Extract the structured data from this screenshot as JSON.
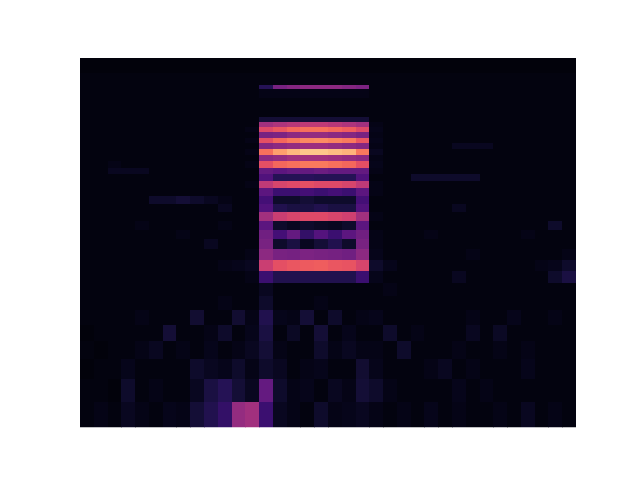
{
  "chart_data": {
    "type": "heatmap",
    "log": "y",
    "tick_labels": false,
    "color": "magma",
    "xlim": [
      0,
      36
    ],
    "ylim": [
      6.5,
      50.5
    ],
    "x_edges": [
      0,
      1,
      2,
      3,
      4,
      5,
      6,
      7,
      8,
      9,
      10,
      11,
      12,
      13,
      14,
      15,
      16,
      17,
      18,
      19,
      20,
      21,
      22,
      23,
      24,
      25,
      26,
      27,
      28,
      29,
      30,
      31,
      32,
      33,
      34,
      35,
      36
    ],
    "y_edges": [
      6.5,
      7.5,
      8.5,
      9.5,
      10.5,
      11.5,
      12.5,
      13.5,
      14.5,
      15.5,
      16.5,
      17.5,
      18.5,
      19.5,
      20.5,
      21.5,
      22.5,
      23.5,
      24.5,
      25.5,
      26.5,
      27.5,
      28.5,
      29.5,
      30.5,
      31.5,
      32.5,
      33.5,
      34.5,
      35.5,
      36.5,
      38.5,
      40.5,
      42.5,
      43.5,
      46.5,
      50.5
    ],
    "color_range": [
      0,
      100
    ],
    "cells": [
      [
        3,
        4,
        3,
        6,
        4,
        3,
        5,
        4,
        10,
        14,
        18,
        42,
        45,
        20,
        6,
        4,
        3,
        8,
        4,
        5,
        6,
        4,
        3,
        4,
        3,
        5,
        3,
        4,
        3,
        3,
        4,
        3,
        6,
        3,
        4,
        3
      ],
      [
        3,
        3,
        2,
        8,
        3,
        4,
        3,
        3,
        6,
        12,
        15,
        10,
        6,
        30,
        8,
        4,
        5,
        3,
        6,
        4,
        10,
        8,
        4,
        3,
        3,
        3,
        3,
        5,
        3,
        4,
        3,
        3,
        3,
        3,
        3,
        3
      ],
      [
        2,
        3,
        3,
        5,
        3,
        3,
        3,
        3,
        8,
        6,
        5,
        8,
        4,
        8,
        6,
        3,
        4,
        5,
        3,
        3,
        9,
        5,
        3,
        3,
        3,
        4,
        6,
        3,
        4,
        3,
        3,
        3,
        5,
        3,
        3,
        3
      ],
      [
        3,
        2,
        3,
        3,
        4,
        6,
        3,
        4,
        3,
        5,
        3,
        4,
        6,
        10,
        4,
        3,
        3,
        8,
        4,
        6,
        4,
        4,
        3,
        8,
        3,
        3,
        3,
        4,
        3,
        3,
        4,
        3,
        4,
        3,
        3,
        3
      ],
      [
        2,
        3,
        3,
        3,
        3,
        3,
        10,
        3,
        3,
        4,
        8,
        3,
        5,
        12,
        3,
        7,
        3,
        10,
        3,
        5,
        3,
        3,
        8,
        3,
        4,
        3,
        3,
        3,
        6,
        3,
        7,
        3,
        3,
        3,
        3,
        3
      ],
      [
        3,
        3,
        3,
        3,
        4,
        3,
        3,
        3,
        9,
        3,
        3,
        9,
        4,
        14,
        5,
        4,
        10,
        3,
        8,
        3,
        4,
        5,
        3,
        3,
        3,
        3,
        3,
        3,
        4,
        3,
        3,
        5,
        3,
        3,
        4,
        3
      ],
      [
        3,
        3,
        3,
        3,
        3,
        3,
        3,
        3,
        3,
        3,
        4,
        3,
        3,
        8,
        3,
        3,
        3,
        4,
        3,
        3,
        3,
        3,
        3,
        3,
        3,
        3,
        3,
        3,
        3,
        3,
        3,
        3,
        3,
        3,
        3,
        3
      ],
      [
        3,
        3,
        3,
        3,
        3,
        3,
        3,
        3,
        3,
        3,
        3,
        3,
        3,
        6,
        3,
        3,
        3,
        3,
        3,
        3,
        3,
        3,
        4,
        3,
        3,
        3,
        3,
        3,
        3,
        3,
        3,
        3,
        3,
        3,
        3,
        3
      ],
      [
        3,
        3,
        3,
        3,
        3,
        3,
        3,
        3,
        3,
        3,
        3,
        3,
        4,
        20,
        14,
        14,
        14,
        14,
        14,
        14,
        20,
        5,
        3,
        3,
        3,
        3,
        3,
        6,
        3,
        3,
        3,
        3,
        3,
        3,
        8,
        12
      ],
      [
        3,
        3,
        3,
        3,
        3,
        3,
        3,
        3,
        3,
        3,
        4,
        5,
        6,
        55,
        62,
        64,
        65,
        66,
        64,
        63,
        58,
        8,
        5,
        3,
        3,
        3,
        3,
        3,
        3,
        3,
        3,
        3,
        3,
        4,
        5,
        8
      ],
      [
        3,
        3,
        3,
        3,
        3,
        3,
        3,
        3,
        3,
        3,
        3,
        3,
        4,
        40,
        35,
        34,
        36,
        35,
        34,
        33,
        40,
        5,
        3,
        3,
        3,
        3,
        3,
        3,
        4,
        3,
        3,
        3,
        3,
        3,
        3,
        4
      ],
      [
        3,
        3,
        3,
        3,
        3,
        3,
        3,
        3,
        3,
        6,
        3,
        3,
        3,
        35,
        8,
        12,
        6,
        10,
        14,
        8,
        35,
        4,
        3,
        3,
        3,
        3,
        3,
        3,
        3,
        3,
        3,
        3,
        3,
        3,
        3,
        3
      ],
      [
        3,
        3,
        3,
        3,
        3,
        3,
        3,
        4,
        3,
        3,
        3,
        3,
        3,
        33,
        22,
        30,
        18,
        26,
        20,
        28,
        33,
        4,
        3,
        3,
        3,
        4,
        3,
        3,
        3,
        3,
        3,
        3,
        4,
        3,
        3,
        3
      ],
      [
        3,
        3,
        3,
        3,
        4,
        3,
        3,
        3,
        3,
        3,
        4,
        3,
        3,
        28,
        8,
        6,
        8,
        7,
        6,
        8,
        28,
        3,
        3,
        3,
        3,
        3,
        3,
        3,
        3,
        3,
        3,
        3,
        3,
        3,
        8,
        3
      ],
      [
        3,
        3,
        3,
        3,
        3,
        3,
        3,
        3,
        3,
        3,
        3,
        3,
        3,
        45,
        55,
        58,
        60,
        60,
        58,
        56,
        45,
        4,
        3,
        3,
        3,
        3,
        3,
        3,
        3,
        3,
        3,
        3,
        3,
        3,
        3,
        3
      ],
      [
        3,
        3,
        3,
        3,
        3,
        3,
        3,
        3,
        3,
        3,
        6,
        3,
        3,
        25,
        14,
        12,
        12,
        14,
        12,
        12,
        25,
        3,
        3,
        3,
        3,
        3,
        3,
        6,
        3,
        3,
        3,
        3,
        3,
        3,
        3,
        3
      ],
      [
        3,
        3,
        3,
        3,
        3,
        8,
        8,
        10,
        8,
        6,
        4,
        3,
        3,
        22,
        8,
        8,
        10,
        8,
        8,
        8,
        22,
        3,
        3,
        3,
        3,
        3,
        3,
        3,
        3,
        3,
        3,
        3,
        3,
        3,
        3,
        3
      ],
      [
        3,
        3,
        3,
        3,
        3,
        3,
        3,
        3,
        3,
        3,
        3,
        3,
        3,
        28,
        20,
        20,
        22,
        20,
        22,
        20,
        28,
        4,
        3,
        3,
        3,
        3,
        3,
        3,
        3,
        3,
        3,
        3,
        3,
        3,
        3,
        3
      ],
      [
        3,
        3,
        3,
        3,
        3,
        3,
        3,
        3,
        3,
        3,
        3,
        3,
        4,
        52,
        58,
        60,
        62,
        60,
        60,
        58,
        52,
        4,
        3,
        3,
        3,
        3,
        3,
        3,
        3,
        3,
        3,
        3,
        3,
        3,
        3,
        3
      ],
      [
        3,
        3,
        3,
        3,
        3,
        3,
        3,
        3,
        3,
        3,
        3,
        3,
        3,
        25,
        15,
        15,
        16,
        15,
        15,
        15,
        25,
        3,
        3,
        3,
        8,
        8,
        8,
        8,
        8,
        3,
        3,
        3,
        3,
        3,
        3,
        3
      ],
      [
        3,
        3,
        6,
        6,
        6,
        3,
        3,
        3,
        3,
        3,
        3,
        3,
        3,
        30,
        28,
        30,
        30,
        32,
        30,
        30,
        30,
        4,
        3,
        3,
        3,
        3,
        3,
        3,
        3,
        3,
        3,
        3,
        3,
        3,
        3,
        3
      ],
      [
        3,
        3,
        4,
        3,
        3,
        3,
        3,
        3,
        3,
        3,
        3,
        3,
        4,
        62,
        68,
        70,
        72,
        72,
        70,
        68,
        62,
        5,
        3,
        3,
        3,
        3,
        3,
        3,
        3,
        3,
        3,
        3,
        3,
        3,
        3,
        3
      ],
      [
        3,
        3,
        3,
        3,
        3,
        3,
        3,
        3,
        3,
        3,
        3,
        3,
        3,
        40,
        42,
        45,
        45,
        45,
        44,
        42,
        40,
        4,
        3,
        3,
        3,
        3,
        3,
        3,
        3,
        3,
        3,
        3,
        3,
        3,
        3,
        3
      ],
      [
        3,
        3,
        3,
        3,
        3,
        3,
        3,
        3,
        3,
        3,
        3,
        3,
        4,
        70,
        80,
        85,
        88,
        88,
        86,
        84,
        72,
        6,
        3,
        3,
        3,
        3,
        3,
        3,
        3,
        3,
        3,
        3,
        3,
        3,
        3,
        3
      ],
      [
        3,
        3,
        3,
        3,
        3,
        3,
        3,
        3,
        3,
        3,
        3,
        3,
        3,
        38,
        40,
        42,
        44,
        44,
        42,
        40,
        38,
        4,
        3,
        3,
        3,
        3,
        3,
        6,
        6,
        6,
        3,
        3,
        3,
        3,
        3,
        3
      ],
      [
        3,
        3,
        3,
        3,
        3,
        3,
        3,
        3,
        3,
        3,
        3,
        3,
        4,
        62,
        68,
        72,
        75,
        76,
        74,
        72,
        64,
        5,
        3,
        3,
        3,
        3,
        3,
        3,
        3,
        3,
        3,
        3,
        3,
        3,
        3,
        3
      ],
      [
        3,
        3,
        3,
        3,
        3,
        3,
        3,
        3,
        3,
        3,
        3,
        3,
        3,
        35,
        36,
        40,
        42,
        42,
        40,
        38,
        35,
        4,
        3,
        3,
        3,
        3,
        3,
        3,
        3,
        3,
        3,
        3,
        3,
        3,
        3,
        3
      ],
      [
        3,
        3,
        3,
        3,
        3,
        3,
        3,
        3,
        3,
        3,
        3,
        3,
        4,
        60,
        64,
        68,
        70,
        70,
        68,
        66,
        60,
        5,
        3,
        3,
        3,
        3,
        3,
        3,
        3,
        3,
        3,
        3,
        3,
        3,
        3,
        3
      ],
      [
        3,
        3,
        3,
        3,
        3,
        3,
        3,
        3,
        3,
        3,
        3,
        3,
        3,
        45,
        48,
        50,
        52,
        52,
        50,
        48,
        45,
        4,
        3,
        3,
        3,
        3,
        3,
        3,
        3,
        3,
        3,
        3,
        3,
        3,
        3,
        3
      ],
      [
        3,
        3,
        3,
        3,
        3,
        3,
        3,
        3,
        3,
        3,
        3,
        3,
        3,
        10,
        10,
        10,
        10,
        10,
        10,
        10,
        10,
        3,
        3,
        3,
        3,
        3,
        3,
        3,
        3,
        3,
        3,
        3,
        3,
        3,
        3,
        3
      ],
      [
        3,
        3,
        3,
        3,
        3,
        3,
        3,
        3,
        3,
        3,
        3,
        3,
        3,
        3,
        3,
        3,
        3,
        3,
        3,
        3,
        3,
        3,
        3,
        3,
        3,
        3,
        3,
        3,
        3,
        3,
        3,
        3,
        3,
        3,
        3,
        3
      ],
      [
        3,
        3,
        3,
        3,
        3,
        3,
        3,
        3,
        3,
        3,
        3,
        3,
        3,
        3,
        3,
        3,
        3,
        3,
        3,
        3,
        3,
        3,
        3,
        3,
        3,
        3,
        3,
        3,
        3,
        3,
        3,
        3,
        3,
        3,
        3,
        3
      ],
      [
        3,
        3,
        3,
        3,
        3,
        3,
        3,
        3,
        3,
        3,
        3,
        3,
        3,
        4,
        4,
        4,
        4,
        4,
        4,
        4,
        4,
        3,
        3,
        3,
        3,
        3,
        3,
        3,
        3,
        3,
        3,
        3,
        3,
        3,
        3,
        3
      ],
      [
        3,
        3,
        3,
        3,
        3,
        3,
        3,
        3,
        3,
        3,
        3,
        3,
        3,
        15,
        35,
        38,
        40,
        40,
        40,
        38,
        36,
        3,
        3,
        3,
        3,
        3,
        3,
        3,
        3,
        3,
        3,
        3,
        3,
        3,
        3,
        3
      ],
      [
        3,
        3,
        3,
        3,
        3,
        3,
        3,
        3,
        3,
        3,
        3,
        3,
        3,
        3,
        3,
        3,
        3,
        3,
        3,
        3,
        3,
        3,
        3,
        3,
        3,
        3,
        3,
        3,
        3,
        3,
        3,
        3,
        3,
        3,
        3,
        3
      ],
      [
        2,
        2,
        2,
        2,
        2,
        2,
        2,
        2,
        2,
        2,
        2,
        2,
        2,
        2,
        2,
        2,
        2,
        2,
        2,
        2,
        2,
        2,
        2,
        2,
        2,
        2,
        2,
        2,
        2,
        2,
        2,
        2,
        2,
        2,
        2,
        2
      ]
    ]
  }
}
